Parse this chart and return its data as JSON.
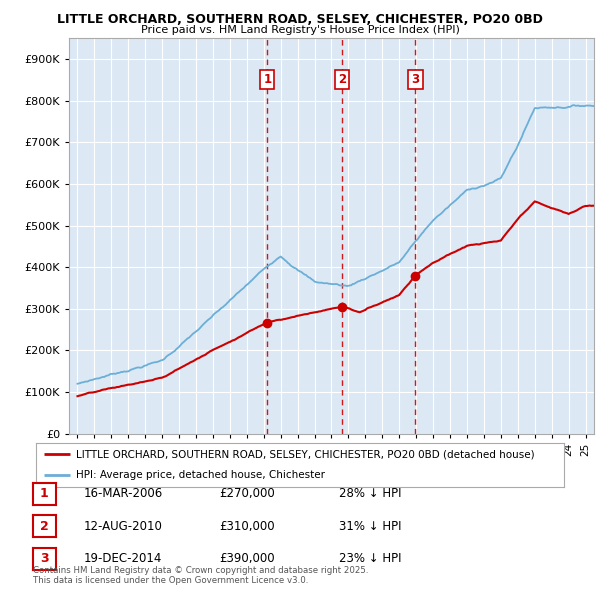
{
  "title1": "LITTLE ORCHARD, SOUTHERN ROAD, SELSEY, CHICHESTER, PO20 0BD",
  "title2": "Price paid vs. HM Land Registry's House Price Index (HPI)",
  "background_color": "#ffffff",
  "plot_bg_color": "#dce9f5",
  "grid_color": "#ffffff",
  "hpi_color": "#6baed6",
  "price_color": "#cc0000",
  "vline_color": "#cc0000",
  "transactions": [
    {
      "num": 1,
      "date": "16-MAR-2006",
      "price": 270000,
      "pct": "28%",
      "x": 2006.21
    },
    {
      "num": 2,
      "date": "12-AUG-2010",
      "price": 310000,
      "pct": "31%",
      "x": 2010.62
    },
    {
      "num": 3,
      "date": "19-DEC-2014",
      "price": 390000,
      "pct": "23%",
      "x": 2014.96
    }
  ],
  "legend_label_price": "LITTLE ORCHARD, SOUTHERN ROAD, SELSEY, CHICHESTER, PO20 0BD (detached house)",
  "legend_label_hpi": "HPI: Average price, detached house, Chichester",
  "footnote": "Contains HM Land Registry data © Crown copyright and database right 2025.\nThis data is licensed under the Open Government Licence v3.0.",
  "ylim": [
    0,
    950000
  ],
  "xlim_start": 1994.5,
  "xlim_end": 2025.5
}
